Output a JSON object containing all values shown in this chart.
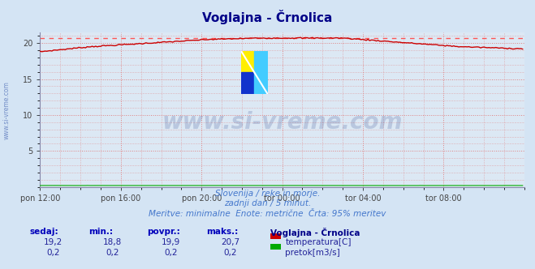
{
  "title": "Voglajna - Črnolica",
  "bg_color": "#d4e4f4",
  "plot_bg_color": "#dce8f4",
  "grid_color": "#e08080",
  "grid_style": ":",
  "x_labels": [
    "pon 12:00",
    "pon 16:00",
    "pon 20:00",
    "tor 00:00",
    "tor 04:00",
    "tor 08:00"
  ],
  "x_ticks": [
    0,
    48,
    96,
    144,
    192,
    240
  ],
  "x_max": 288,
  "y_lim": [
    0,
    21.5
  ],
  "y_ticks": [
    5,
    10,
    15,
    20
  ],
  "temp_color": "#cc0000",
  "flow_color": "#00aa00",
  "dashed_line_color": "#ff5555",
  "dashed_line_value": 20.7,
  "watermark_text": "www.si-vreme.com",
  "watermark_color": "#1a3580",
  "watermark_alpha": 0.18,
  "subtitle1": "Slovenija / reke in morje.",
  "subtitle2": "zadnji dan / 5 minut.",
  "subtitle3": "Meritve: minimalne  Enote: metrične  Črta: 95% meritev",
  "subtitle_color": "#4477cc",
  "footer_header_color": "#0000bb",
  "footer_value_color": "#222299",
  "legend_title": "Voglajna - Črnolica",
  "legend_temp_label": "temperatura[C]",
  "legend_flow_label": "pretok[m3/s]",
  "footer_headers": [
    "sedaj:",
    "min.:",
    "povpr.:",
    "maks.:"
  ],
  "footer_temp_values": [
    "19,2",
    "18,8",
    "19,9",
    "20,7"
  ],
  "footer_flow_values": [
    "0,2",
    "0,2",
    "0,2",
    "0,2"
  ],
  "axis_label_color": "#444444",
  "left_watermark": "www.si-vreme.com",
  "left_watermark_color": "#3355aa",
  "n_points": 288
}
